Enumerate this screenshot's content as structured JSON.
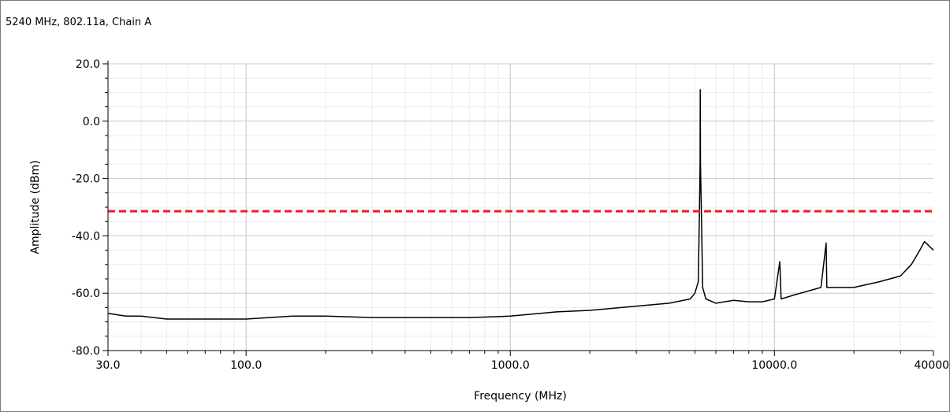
{
  "chart_data": {
    "type": "line",
    "title": "5240 MHz, 802.11a, Chain A",
    "xlabel": "Frequency (MHz)",
    "ylabel": "Amplitude (dBm)",
    "x_scale": "log",
    "xlim": [
      30,
      40000
    ],
    "ylim": [
      -80,
      20
    ],
    "x_ticks": [
      {
        "value": 30,
        "label": "30.0"
      },
      {
        "value": 100,
        "label": "100.0"
      },
      {
        "value": 1000,
        "label": "1000.0"
      },
      {
        "value": 10000,
        "label": "10000.0"
      },
      {
        "value": 40000,
        "label": "40000."
      }
    ],
    "y_ticks": [
      {
        "value": 20,
        "label": "20.0"
      },
      {
        "value": 0,
        "label": "0.0"
      },
      {
        "value": -20,
        "label": "-20.0"
      },
      {
        "value": -40,
        "label": "-40.0"
      },
      {
        "value": -60,
        "label": "-60.0"
      },
      {
        "value": -80,
        "label": "-80.0"
      }
    ],
    "grid": true,
    "series": [
      {
        "color": "#000000",
        "style": "solid",
        "x": [
          30,
          35,
          40,
          50,
          60,
          80,
          100,
          150,
          200,
          300,
          400,
          500,
          700,
          1000,
          1500,
          2000,
          3000,
          4000,
          4800,
          5000,
          5150,
          5200,
          5230,
          5240,
          5250,
          5280,
          5350,
          5500,
          6000,
          7000,
          8000,
          9000,
          10000,
          10480,
          10600,
          12000,
          15000,
          15700,
          15800,
          17000,
          20000,
          25000,
          30000,
          33000,
          35000,
          37000,
          40000
        ],
        "y": [
          -67,
          -68,
          -68,
          -69,
          -69,
          -69,
          -69,
          -68,
          -68,
          -68.5,
          -68.5,
          -68.5,
          -68.5,
          -68,
          -66.5,
          -66,
          -64.5,
          -63.5,
          -62,
          -60,
          -56,
          -33,
          -15,
          11,
          -15,
          -28,
          -58,
          -62,
          -63.5,
          -62.5,
          -63,
          -63,
          -62,
          -49,
          -62,
          -60.5,
          -58,
          -42.5,
          -58,
          -58,
          -58,
          -56,
          -54,
          -50,
          -46,
          -42,
          -45
        ]
      },
      {
        "color": "#ee1c25",
        "style": "dashed",
        "x": [
          30,
          40000
        ],
        "y": [
          -31.4,
          -31.4
        ]
      }
    ]
  }
}
